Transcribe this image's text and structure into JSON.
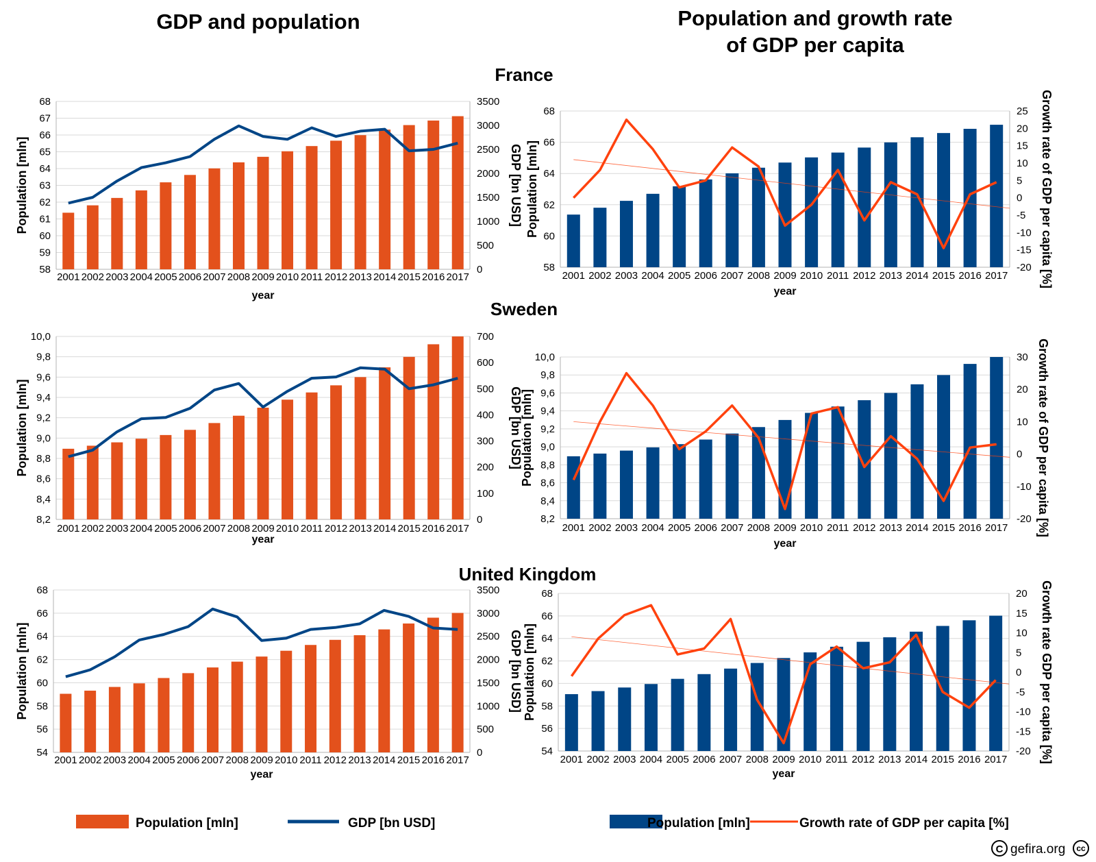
{
  "colors": {
    "orange": "#e3511c",
    "navy": "#004586",
    "red": "#ff420e",
    "trend": "#ff420e",
    "grid": "#d9d9d9",
    "axis": "#b3b3b3"
  },
  "titles": {
    "left": "GDP and population",
    "right_line1": "Population and growth rate",
    "right_line2": "of GDP per capita"
  },
  "countries": [
    "France",
    "Sweden",
    "United Kingdom"
  ],
  "legend": {
    "left": {
      "population": "Population [mln]",
      "gdp": "GDP [bn USD]"
    },
    "right": {
      "population": "Population [mln]",
      "growth": "Growth rate of GDP per capita [%]"
    }
  },
  "credit": "gefira.org",
  "credit_icons": {
    "copyright": "copyright-icon",
    "cc": "creative-commons-icon",
    "cc_text": "cc"
  },
  "chart_data": [
    {
      "id": "france-gdp",
      "type": "bar+line",
      "country": "France",
      "categories": [
        "2001",
        "2002",
        "2003",
        "2004",
        "2005",
        "2006",
        "2007",
        "2008",
        "2009",
        "2010",
        "2011",
        "2012",
        "2013",
        "2014",
        "2015",
        "2016",
        "2017"
      ],
      "xlabel": "year",
      "ylabel": "Population [mln]",
      "y2label": "GDP [bn USD]",
      "ylim": [
        58,
        68
      ],
      "yticks": [
        "58",
        "59",
        "60",
        "61",
        "62",
        "63",
        "64",
        "65",
        "66",
        "67",
        "68"
      ],
      "y2lim": [
        0,
        3500
      ],
      "y2ticks": [
        "0",
        "500",
        "1000",
        "1500",
        "2000",
        "2500",
        "3000",
        "3500"
      ],
      "series": [
        {
          "name": "Population [mln]",
          "type": "bar",
          "axis": "left",
          "values": [
            61.37,
            61.81,
            62.25,
            62.7,
            63.18,
            63.62,
            64.01,
            64.37,
            64.7,
            65.03,
            65.34,
            65.66,
            65.99,
            66.32,
            66.59,
            66.86,
            67.12
          ]
        },
        {
          "name": "GDP [bn USD]",
          "type": "line",
          "axis": "right",
          "values": [
            1380,
            1500,
            1840,
            2120,
            2220,
            2350,
            2710,
            2990,
            2770,
            2710,
            2950,
            2770,
            2880,
            2920,
            2470,
            2500,
            2630
          ]
        }
      ]
    },
    {
      "id": "france-growth",
      "type": "bar+line",
      "country": "France",
      "categories": [
        "2001",
        "2002",
        "2003",
        "2004",
        "2005",
        "2006",
        "2007",
        "2008",
        "2009",
        "2010",
        "2011",
        "2012",
        "2013",
        "2014",
        "2015",
        "2016",
        "2017"
      ],
      "xlabel": "year",
      "ylabel": "Population [mln]",
      "y2label": "Growth rate of GDP per capita [%]",
      "ylim": [
        58,
        68
      ],
      "yticks": [
        "58",
        "60",
        "62",
        "64",
        "66",
        "68"
      ],
      "y2lim": [
        -20,
        25
      ],
      "y2ticks": [
        "-20",
        "-15",
        "-10",
        "-5",
        "0",
        "5",
        "10",
        "15",
        "20",
        "25"
      ],
      "trend": [
        11,
        -3
      ],
      "series": [
        {
          "name": "Population [mln]",
          "type": "bar",
          "axis": "left",
          "values": [
            61.37,
            61.81,
            62.25,
            62.7,
            63.18,
            63.62,
            64.01,
            64.37,
            64.7,
            65.03,
            65.34,
            65.66,
            65.99,
            66.32,
            66.59,
            66.86,
            67.12
          ]
        },
        {
          "name": "Growth rate of GDP per capita [%]",
          "type": "line",
          "axis": "right",
          "values": [
            0,
            8,
            22.5,
            14,
            3,
            5,
            14.5,
            9,
            -8,
            -2,
            8,
            -6.5,
            4.5,
            1,
            -14.5,
            1,
            4.5
          ]
        }
      ]
    },
    {
      "id": "sweden-gdp",
      "type": "bar+line",
      "country": "Sweden",
      "categories": [
        "2001",
        "2002",
        "2003",
        "2004",
        "2005",
        "2006",
        "2007",
        "2008",
        "2009",
        "2010",
        "2011",
        "2012",
        "2013",
        "2014",
        "2015",
        "2016",
        "2017"
      ],
      "xlabel": "year",
      "ylabel": "Population [mln]",
      "y2label": "GDP [bn USD]",
      "ylim": [
        8.2,
        10.0
      ],
      "yticks": [
        "8,2",
        "8,4",
        "8,6",
        "8,8",
        "9,0",
        "9,2",
        "9,4",
        "9,6",
        "9,8",
        "10,0"
      ],
      "y2lim": [
        0,
        700
      ],
      "y2ticks": [
        "0",
        "100",
        "200",
        "300",
        "400",
        "500",
        "600",
        "700"
      ],
      "series": [
        {
          "name": "Population [mln]",
          "type": "bar",
          "axis": "left",
          "values": [
            8.895,
            8.925,
            8.958,
            8.994,
            9.03,
            9.081,
            9.148,
            9.22,
            9.299,
            9.378,
            9.449,
            9.519,
            9.6,
            9.696,
            9.799,
            9.923,
            10.058
          ]
        },
        {
          "name": "GDP [bn USD]",
          "type": "line",
          "axis": "right",
          "values": [
            240,
            265,
            335,
            385,
            390,
            425,
            495,
            520,
            430,
            490,
            540,
            545,
            580,
            575,
            500,
            515,
            540
          ]
        }
      ]
    },
    {
      "id": "sweden-growth",
      "type": "bar+line",
      "country": "Sweden",
      "categories": [
        "2001",
        "2002",
        "2003",
        "2004",
        "2005",
        "2006",
        "2007",
        "2008",
        "2009",
        "2010",
        "2011",
        "2012",
        "2013",
        "2014",
        "2015",
        "2016",
        "2017"
      ],
      "xlabel": "year",
      "ylabel": "Population [mln]",
      "y2label": "Growth rate of GDP per capita [%]",
      "ylim": [
        8.2,
        10.0
      ],
      "yticks": [
        "8,2",
        "8,4",
        "8,6",
        "8,8",
        "9,0",
        "9,2",
        "9,4",
        "9,6",
        "9,8",
        "10,0"
      ],
      "y2lim": [
        -20,
        30
      ],
      "y2ticks": [
        "-20",
        "-10",
        "0",
        "10",
        "20",
        "30"
      ],
      "trend": [
        10,
        -1
      ],
      "series": [
        {
          "name": "Population [mln]",
          "type": "bar",
          "axis": "left",
          "values": [
            8.895,
            8.925,
            8.958,
            8.994,
            9.03,
            9.081,
            9.148,
            9.22,
            9.299,
            9.378,
            9.449,
            9.519,
            9.6,
            9.696,
            9.799,
            9.923,
            10.058
          ]
        },
        {
          "name": "Growth rate of GDP per capita [%]",
          "type": "line",
          "axis": "right",
          "values": [
            -8,
            10,
            25,
            15,
            1.5,
            7,
            15,
            5,
            -17,
            12.5,
            14.5,
            -4,
            5.5,
            -1.5,
            -14.5,
            2,
            3
          ]
        }
      ]
    },
    {
      "id": "uk-gdp",
      "type": "bar+line",
      "country": "United Kingdom",
      "categories": [
        "2001",
        "2002",
        "2003",
        "2004",
        "2005",
        "2006",
        "2007",
        "2008",
        "2009",
        "2010",
        "2011",
        "2012",
        "2013",
        "2014",
        "2015",
        "2016",
        "2017"
      ],
      "xlabel": "year",
      "ylabel": "Population [mln]",
      "y2label": "GDP [bn USD]",
      "ylim": [
        54,
        68
      ],
      "yticks": [
        "54",
        "56",
        "58",
        "60",
        "62",
        "64",
        "66",
        "68"
      ],
      "y2lim": [
        0,
        3500
      ],
      "y2ticks": [
        "0",
        "500",
        "1000",
        "1500",
        "2000",
        "2500",
        "3000",
        "3500"
      ],
      "series": [
        {
          "name": "Population [mln]",
          "type": "bar",
          "axis": "left",
          "values": [
            59.05,
            59.32,
            59.64,
            59.95,
            60.41,
            60.83,
            61.32,
            61.82,
            62.26,
            62.76,
            63.26,
            63.7,
            64.1,
            64.6,
            65.11,
            65.61,
            66.02
          ]
        },
        {
          "name": "GDP [bn USD]",
          "type": "line",
          "axis": "right",
          "values": [
            1630,
            1780,
            2060,
            2420,
            2540,
            2710,
            3090,
            2920,
            2410,
            2460,
            2650,
            2690,
            2770,
            3060,
            2930,
            2680,
            2650
          ]
        }
      ]
    },
    {
      "id": "uk-growth",
      "type": "bar+line",
      "country": "United Kingdom",
      "categories": [
        "2001",
        "2002",
        "2003",
        "2004",
        "2005",
        "2006",
        "2007",
        "2008",
        "2009",
        "2010",
        "2011",
        "2012",
        "2013",
        "2014",
        "2015",
        "2016",
        "2017"
      ],
      "xlabel": "year",
      "ylabel": "Population [mln]",
      "y2label": "Growth rate GDP per capita [%]",
      "ylim": [
        54,
        68
      ],
      "yticks": [
        "54",
        "56",
        "58",
        "60",
        "62",
        "64",
        "66",
        "68"
      ],
      "y2lim": [
        -20,
        20
      ],
      "y2ticks": [
        "-20",
        "-15",
        "-10",
        "-5",
        "0",
        "5",
        "10",
        "15",
        "20"
      ],
      "trend": [
        9,
        -3
      ],
      "series": [
        {
          "name": "Population [mln]",
          "type": "bar",
          "axis": "left",
          "values": [
            59.05,
            59.32,
            59.64,
            59.95,
            60.41,
            60.83,
            61.32,
            61.82,
            62.26,
            62.76,
            63.26,
            63.7,
            64.1,
            64.6,
            65.11,
            65.61,
            66.02
          ]
        },
        {
          "name": "Growth rate of GDP per capita [%]",
          "type": "line",
          "axis": "right",
          "values": [
            -1,
            8.5,
            14.5,
            17,
            4.5,
            6,
            13.5,
            -7,
            -18,
            2,
            6.5,
            1,
            2.5,
            9.5,
            -5,
            -9,
            -2
          ]
        }
      ]
    }
  ]
}
